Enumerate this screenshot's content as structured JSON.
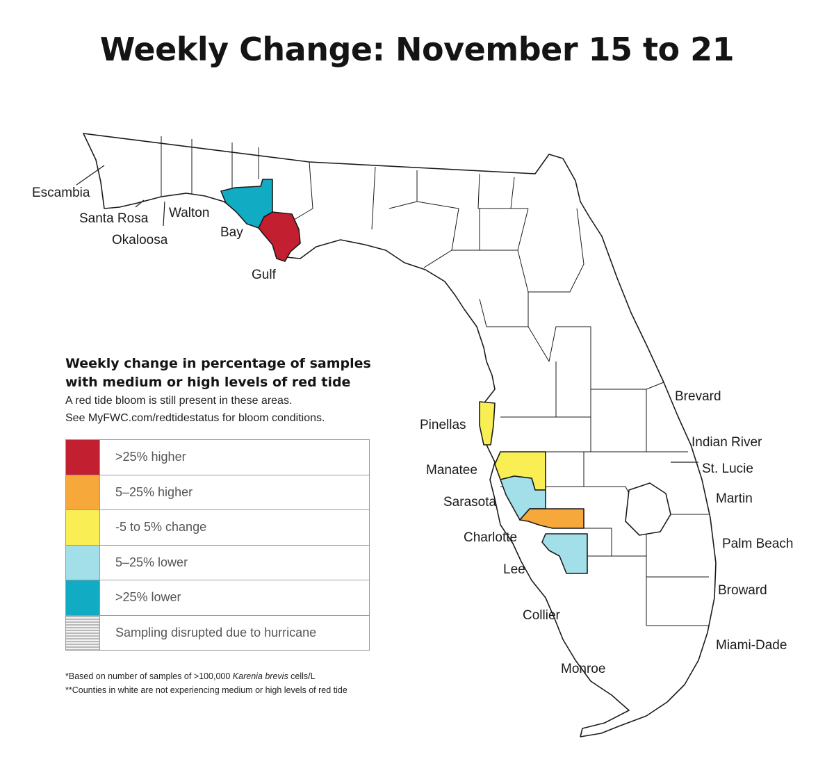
{
  "title": "Weekly Change: November 15 to 21",
  "legend": {
    "heading_line1": "Weekly change in percentage of samples",
    "heading_line2": "with medium or high levels of red tide",
    "subtext_line1": "A red tide bloom is still present in these areas.",
    "subtext_line2": "See MyFWC.com/redtidestatus for bloom conditions.",
    "items": [
      {
        "label": ">25% higher",
        "color": "#c21f30"
      },
      {
        "label": "5–25% higher",
        "color": "#f6a83a"
      },
      {
        "label": "-5 to 5% change",
        "color": "#f9ef55"
      },
      {
        "label": "5–25% lower",
        "color": "#a3dfe8"
      },
      {
        "label": ">25% lower",
        "color": "#11acc3"
      },
      {
        "label": "Sampling disrupted due to hurricane",
        "color": "hatched-gray"
      }
    ]
  },
  "footnotes": {
    "line1_prefix": "*Based on number of samples of >100,000 ",
    "line1_species": "Karenia brevis",
    "line1_suffix": " cells/L",
    "line2": "**Counties in white are not experiencing medium or high levels of red tide"
  },
  "counties": {
    "escambia": "Escambia",
    "santa_rosa": "Santa Rosa",
    "okaloosa": "Okaloosa",
    "walton": "Walton",
    "bay": "Bay",
    "gulf": "Gulf",
    "pinellas": "Pinellas",
    "manatee": "Manatee",
    "sarasota": "Sarasota",
    "charlotte": "Charlotte",
    "lee": "Lee",
    "collier": "Collier",
    "monroe": "Monroe",
    "brevard": "Brevard",
    "indian_river": "Indian River",
    "st_lucie": "St. Lucie",
    "martin": "Martin",
    "palm_beach": "Palm Beach",
    "broward": "Broward",
    "miami_dade": "Miami-Dade"
  },
  "county_status": {
    "Bay": ">25% lower",
    "Gulf": ">25% higher",
    "Pinellas": "-5 to 5% change",
    "Manatee": "-5 to 5% change",
    "Sarasota": "5–25% lower",
    "Charlotte": "5–25% higher",
    "Lee": "5–25% lower"
  }
}
